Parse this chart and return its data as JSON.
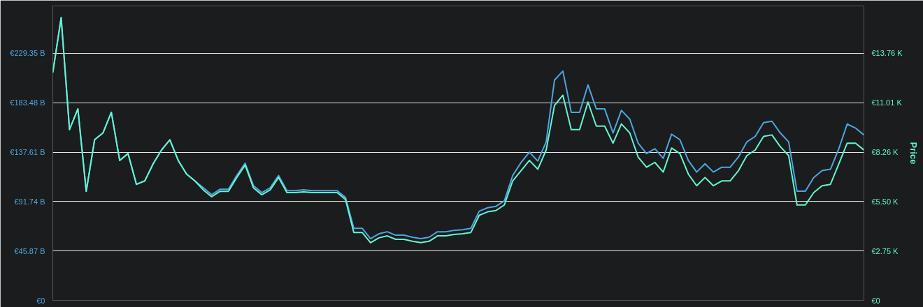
{
  "chart_data": {
    "type": "line",
    "y2label": "Price",
    "categories": [
      null,
      null,
      null,
      null,
      null,
      null,
      null,
      null,
      null,
      null,
      null,
      null,
      null,
      null,
      null,
      null,
      null,
      null,
      null,
      null,
      null,
      null,
      null,
      null,
      null,
      null,
      null,
      null,
      null,
      null,
      null,
      null,
      null,
      null,
      null,
      null,
      null,
      null,
      null,
      null,
      null,
      null,
      null,
      null,
      null,
      null,
      null,
      null,
      null,
      null,
      null,
      null,
      null,
      null,
      null,
      null,
      null,
      null,
      null,
      null,
      null,
      null,
      null,
      null,
      null,
      null,
      null,
      null,
      null,
      null,
      null,
      null,
      null,
      null,
      null,
      null,
      null,
      null,
      null,
      null,
      null,
      null,
      null,
      null,
      null,
      null,
      null,
      null,
      null,
      null,
      null,
      null,
      null,
      null,
      null,
      null,
      null,
      null
    ],
    "series": [
      {
        "color": "#4da6e0",
        "values": [
          211.5,
          262.4,
          158.6,
          177.7,
          101.3,
          149.1,
          155.4,
          174.5,
          129.9,
          136.3,
          107.7,
          110.8,
          126.8,
          139.5,
          149.1,
          129.9,
          117.2,
          110.8,
          104.5,
          98.1,
          103.2,
          103.2,
          115.9,
          127.4,
          106.4,
          100.0,
          104.5,
          115.9,
          101.9,
          101.9,
          102.6,
          101.9,
          101.9,
          101.9,
          101.9,
          95.6,
          66.9,
          66.9,
          57.3,
          61.8,
          63.7,
          60.5,
          60.5,
          58.6,
          57.3,
          58.6,
          63.7,
          63.7,
          65.0,
          65.6,
          66.9,
          82.8,
          86.0,
          87.3,
          92.4,
          115.9,
          128.0,
          137.6,
          129.3,
          147.1,
          204.5,
          212.8,
          174.5,
          174.5,
          200.0,
          177.7,
          177.7,
          155.4,
          176.4,
          168.2,
          145.9,
          136.3,
          140.8,
          131.9,
          154.2,
          149.1,
          129.9,
          119.1,
          126.8,
          119.1,
          123.6,
          123.6,
          133.1,
          147.1,
          152.2,
          165.0,
          166.3,
          155.4,
          147.1,
          101.3,
          101.3,
          114.0,
          120.4,
          121.7,
          140.8,
          163.7,
          159.9,
          153.5
        ]
      },
      {
        "color": "#64f5d0",
        "axis": "y2",
        "values": [
          12.68,
          15.74,
          9.51,
          10.66,
          6.07,
          8.94,
          9.32,
          10.47,
          7.79,
          8.17,
          6.46,
          6.65,
          7.6,
          8.37,
          8.94,
          7.79,
          7.03,
          6.65,
          6.15,
          5.77,
          6.07,
          6.07,
          6.84,
          7.53,
          6.26,
          5.88,
          6.15,
          6.84,
          6.0,
          6.0,
          6.04,
          6.0,
          6.0,
          6.0,
          6.0,
          5.62,
          3.78,
          3.78,
          3.21,
          3.48,
          3.59,
          3.4,
          3.4,
          3.29,
          3.21,
          3.29,
          3.59,
          3.59,
          3.67,
          3.71,
          3.78,
          4.74,
          4.93,
          5.0,
          5.31,
          6.65,
          7.22,
          7.79,
          7.3,
          8.37,
          10.85,
          11.42,
          9.51,
          9.51,
          11.04,
          9.7,
          9.7,
          8.75,
          9.82,
          9.32,
          7.98,
          7.41,
          7.68,
          7.14,
          8.48,
          8.17,
          7.03,
          6.38,
          6.84,
          6.38,
          6.65,
          6.65,
          7.22,
          8.06,
          8.37,
          9.13,
          9.21,
          8.56,
          8.06,
          5.31,
          5.31,
          6.0,
          6.38,
          6.46,
          7.6,
          8.75,
          8.75,
          8.37
        ]
      }
    ],
    "ylim": [
      0,
      273.3
    ],
    "yticks": [
      {
        "value": 0,
        "label": "€0"
      },
      {
        "value": 45.87,
        "label": "€45.87 B"
      },
      {
        "value": 91.74,
        "label": "€91.74 B"
      },
      {
        "value": 137.61,
        "label": "€137.61 B"
      },
      {
        "value": 183.48,
        "label": "€183.48 B"
      },
      {
        "value": 229.35,
        "label": "€229.35 B"
      }
    ],
    "y2lim": [
      0,
      16.39
    ],
    "y2ticks": [
      {
        "value": 0,
        "label": "€0"
      },
      {
        "value": 2.75,
        "label": "€2.75 K"
      },
      {
        "value": 5.5,
        "label": "€5.50 K"
      },
      {
        "value": 8.26,
        "label": "€8.26 K"
      },
      {
        "value": 11.01,
        "label": "€11.01 K"
      },
      {
        "value": 13.76,
        "label": "€13.76 K"
      }
    ],
    "grid": "y",
    "marker": "none",
    "line_style": "solid"
  }
}
